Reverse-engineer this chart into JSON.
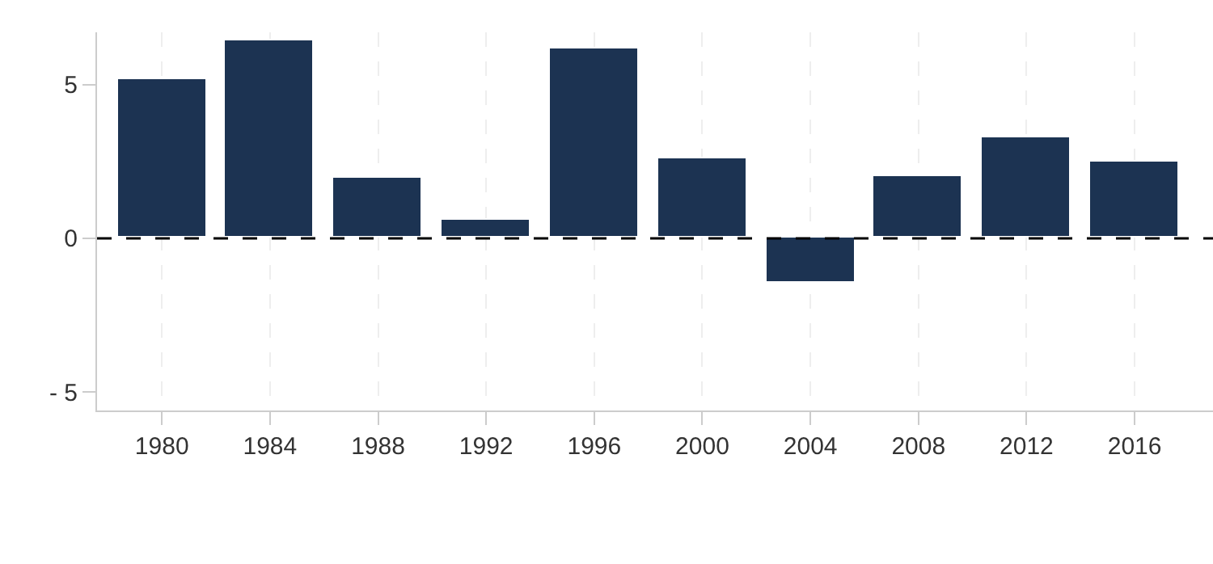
{
  "chart_data": {
    "type": "bar",
    "x": [
      1980,
      1984,
      1988,
      1992,
      1996,
      2000,
      2004,
      2008,
      2012,
      2016
    ],
    "values": [
      5.2,
      6.45,
      1.97,
      0.6,
      6.2,
      2.6,
      -1.45,
      2.0,
      3.3,
      2.5
    ],
    "color": "#1c3352",
    "xlim": [
      1977.6,
      2018.9
    ],
    "xticks": [
      1980,
      1984,
      1988,
      1992,
      1996,
      2000,
      2004,
      2008,
      2012,
      2016
    ],
    "ylim": [
      -5.6,
      6.7
    ],
    "yticks": [
      {
        "value": -5,
        "label": "- 5"
      },
      0,
      5
    ],
    "grid": "x",
    "ref_lines": [
      {
        "axis": "y",
        "value": 0,
        "color": "#000000",
        "line_style": "dashed"
      }
    ]
  }
}
